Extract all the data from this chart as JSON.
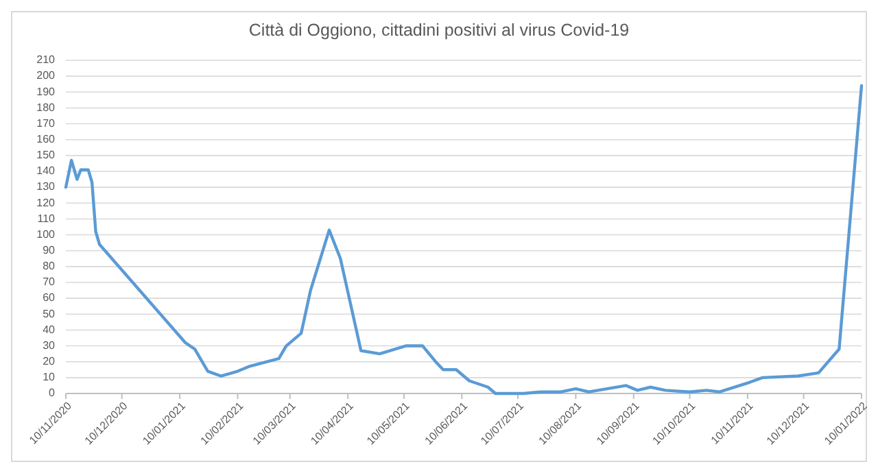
{
  "chart_data": {
    "type": "line",
    "title": "Città di Oggiono, cittadini positivi al virus Covid-19",
    "x": [
      "2020-11-10",
      "2020-11-13",
      "2020-11-16",
      "2020-11-18",
      "2020-11-22",
      "2020-11-24",
      "2020-11-26",
      "2020-11-28",
      "2021-01-13",
      "2021-01-18",
      "2021-01-25",
      "2021-02-01",
      "2021-02-10",
      "2021-02-16",
      "2021-03-04",
      "2021-03-08",
      "2021-03-16",
      "2021-03-21",
      "2021-03-31",
      "2021-04-06",
      "2021-04-17",
      "2021-04-27",
      "2021-05-11",
      "2021-05-20",
      "2021-05-27",
      "2021-05-31",
      "2021-06-07",
      "2021-06-14",
      "2021-06-24",
      "2021-06-28",
      "2021-07-13",
      "2021-07-22",
      "2021-08-02",
      "2021-08-10",
      "2021-08-17",
      "2021-09-06",
      "2021-09-12",
      "2021-09-19",
      "2021-09-27",
      "2021-10-10",
      "2021-10-19",
      "2021-10-26",
      "2021-11-11",
      "2021-11-18",
      "2021-12-07",
      "2021-12-18",
      "2021-12-29",
      "2022-01-10"
    ],
    "series": [
      {
        "color": "#5b9bd5",
        "values": [
          130,
          147,
          135,
          141,
          141,
          133,
          102,
          94,
          32,
          28,
          14,
          11,
          14,
          17,
          22,
          30,
          38,
          65,
          103,
          85,
          27,
          25,
          30,
          30,
          20,
          15,
          15,
          8,
          4,
          0,
          0,
          1,
          1,
          3,
          1,
          5,
          2,
          4,
          2,
          1,
          2,
          1,
          7,
          10,
          11,
          13,
          28,
          194
        ]
      }
    ],
    "xlim": [
      "2020-11-10",
      "2022-01-10"
    ],
    "xticks": [
      {
        "value": "2020-11-10",
        "label": "10/11/2020"
      },
      {
        "value": "2020-12-10",
        "label": "10/12/2020"
      },
      {
        "value": "2021-01-10",
        "label": "10/01/2021"
      },
      {
        "value": "2021-02-10",
        "label": "10/02/2021"
      },
      {
        "value": "2021-03-10",
        "label": "10/03/2021"
      },
      {
        "value": "2021-04-10",
        "label": "10/04/2021"
      },
      {
        "value": "2021-05-10",
        "label": "10/05/2021"
      },
      {
        "value": "2021-06-10",
        "label": "10/06/2021"
      },
      {
        "value": "2021-07-10",
        "label": "10/07/2021"
      },
      {
        "value": "2021-08-10",
        "label": "10/08/2021"
      },
      {
        "value": "2021-09-10",
        "label": "10/09/2021"
      },
      {
        "value": "2021-10-10",
        "label": "10/10/2021"
      },
      {
        "value": "2021-11-10",
        "label": "10/11/2021"
      },
      {
        "value": "2021-12-10",
        "label": "10/12/2021"
      },
      {
        "value": "2022-01-10",
        "label": "10/01/2022"
      }
    ],
    "ylim": [
      0,
      210
    ],
    "yticks": [
      0,
      10,
      20,
      30,
      40,
      50,
      60,
      70,
      80,
      90,
      100,
      110,
      120,
      130,
      140,
      150,
      160,
      170,
      180,
      190,
      200,
      210
    ],
    "grid": "y",
    "marker": "none",
    "line_style": "solid"
  }
}
